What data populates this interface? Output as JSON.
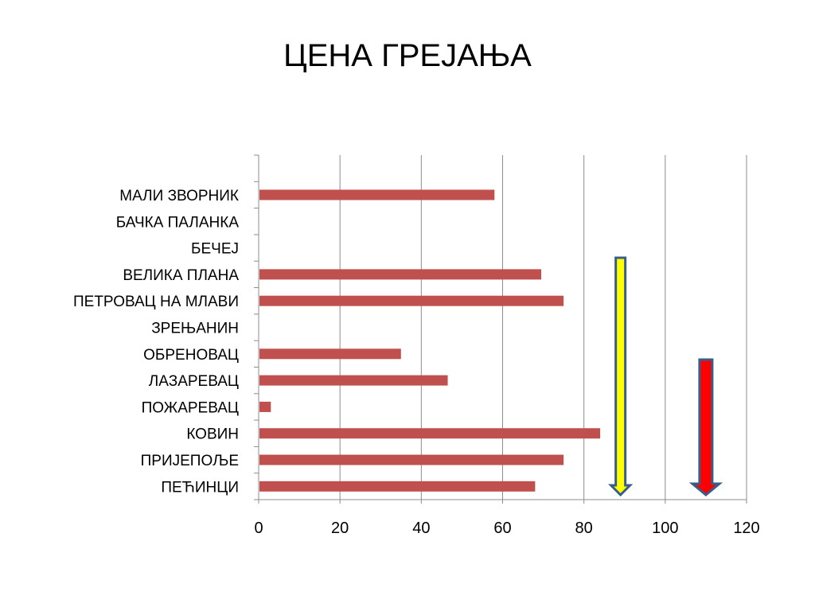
{
  "chart_data": {
    "type": "bar",
    "orientation": "horizontal",
    "title": "ЦЕНА ГРЕЈАЊА",
    "categories": [
      "ПЕЋИНЦИ",
      "ПРИЈЕПОЉЕ",
      "КОВИН",
      "ПОЖАРЕВАЦ",
      "ЛАЗАРЕВАЦ",
      "ОБРЕНОВАЦ",
      "ЗРЕЊАНИН",
      "ПЕТРОВАЦ НА МЛАВИ",
      "ВЕЛИКА ПЛАНА",
      "БЕЧЕЈ",
      "БАЧКА ПАЛАНКА",
      "МАЛИ ЗВОРНИК",
      ""
    ],
    "values": [
      68,
      75,
      84,
      3,
      46.5,
      35,
      0,
      75,
      69.5,
      0,
      0,
      58,
      0
    ],
    "xlim": [
      0,
      120
    ],
    "xticks": [
      "0",
      "20",
      "40",
      "60",
      "80",
      "100",
      "120"
    ],
    "xlabel": "",
    "ylabel": "",
    "grid": true,
    "bar_color": "#C0504D",
    "annotations": [
      {
        "type": "down-arrow",
        "name": "yellow-arrow",
        "x": 89,
        "fill": "#FFFF00",
        "stroke": "#385D8A"
      },
      {
        "type": "down-arrow",
        "name": "red-arrow",
        "x": 110,
        "fill": "#FF0000",
        "stroke": "#385D8A"
      }
    ]
  }
}
